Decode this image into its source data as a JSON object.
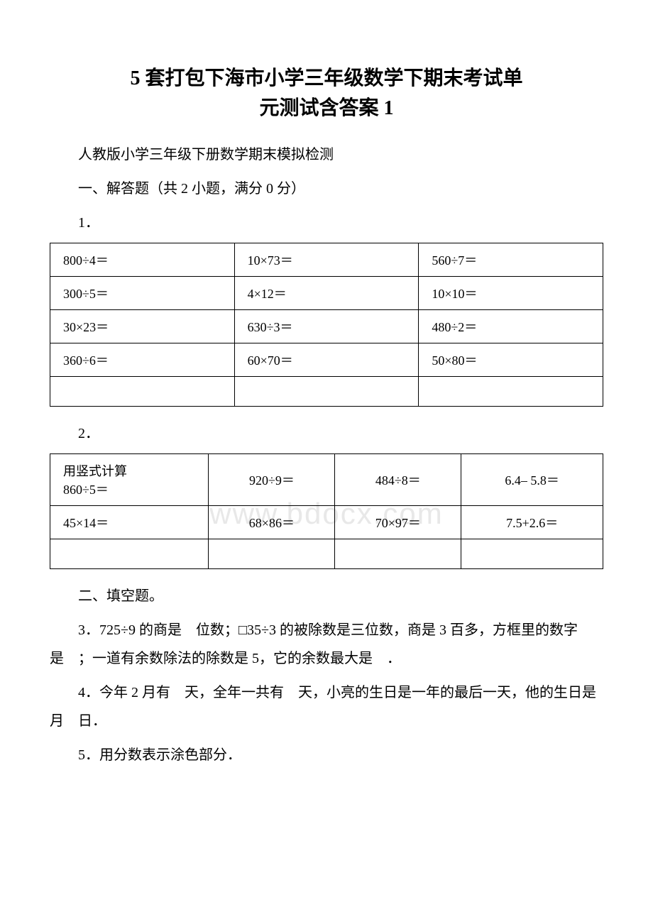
{
  "title_line1": "5 套打包下海市小学三年级数学下期末考试单",
  "title_line2": "元测试含答案 1",
  "intro1": "人教版小学三年级下册数学期末模拟检测",
  "intro2": "一、解答题（共 2 小题，满分 0 分）",
  "q1_label": "1．",
  "table1": {
    "rows": [
      [
        "800÷4＝",
        "10×73＝",
        "560÷7＝"
      ],
      [
        "300÷5＝",
        "4×12＝",
        "10×10＝"
      ],
      [
        "30×23＝",
        "630÷3＝",
        "480÷2＝"
      ],
      [
        "360÷6＝",
        "60×70＝",
        "50×80＝"
      ],
      [
        "",
        "",
        ""
      ]
    ]
  },
  "q2_label": "2．",
  "table2": {
    "rows": [
      [
        "用竖式计算\n860÷5＝",
        "920÷9＝",
        "484÷8＝",
        "6.4– 5.8＝"
      ],
      [
        "45×14＝",
        "68×86＝",
        "70×97＝",
        "7.5+2.6＝"
      ],
      [
        "",
        "",
        "",
        ""
      ]
    ]
  },
  "section2": "二、填空题。",
  "q3": "3．725÷9 的商是　位数；□35÷3 的被除数是三位数，商是 3 百多，方框里的数字是　；一道有余数除法的除数是 5，它的余数最大是　．",
  "q4": "4．今年 2 月有　天，全年一共有　天，小亮的生日是一年的最后一天，他的生日是　月　日．",
  "q5": "5．用分数表示涂色部分．",
  "watermark": "www.bdocx.com",
  "colors": {
    "text": "#000000",
    "border": "#000000",
    "background": "#ffffff",
    "watermark": "#e8e8e8"
  },
  "fonts": {
    "body_family": "SimSun",
    "title_size": 28,
    "body_size": 20,
    "table_size": 18
  }
}
